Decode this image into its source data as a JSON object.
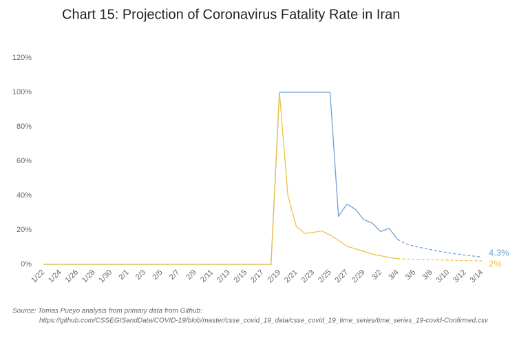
{
  "chart_data": {
    "type": "line",
    "title": "Chart 15: Projection of Coronavirus Fatality Rate in Iran",
    "source": [
      "Source: Tomas Pueyo analysis from primary data from Github:",
      "https://github.com/CSSEGISandData/COVID-19/blob/master/csse_covid_19_data/csse_covid_19_time_series/time_series_19-covid-Confirmed.csv"
    ],
    "categories": [
      "1/22",
      null,
      "1/24",
      null,
      "1/26",
      null,
      "1/28",
      null,
      "1/30",
      null,
      "2/1",
      null,
      "2/3",
      null,
      "2/5",
      null,
      "2/7",
      null,
      "2/9",
      null,
      "2/11",
      null,
      "2/13",
      null,
      "2/15",
      null,
      "2/17",
      null,
      "2/19",
      null,
      "2/21",
      null,
      "2/23",
      null,
      "2/25",
      null,
      "2/27",
      null,
      "2/29",
      null,
      "3/2",
      null,
      "3/4",
      null,
      "3/6",
      null,
      "3/8",
      null,
      "3/10",
      null,
      "3/12",
      null,
      "3/14"
    ],
    "series": [
      {
        "color": "#6f9fd8",
        "dashed": false,
        "values": [
          0,
          0,
          0,
          0,
          0,
          0,
          0,
          0,
          0,
          0,
          0,
          0,
          0,
          0,
          0,
          0,
          0,
          0,
          0,
          0,
          0,
          0,
          0,
          0,
          0,
          0,
          0,
          0,
          100,
          100,
          100,
          100,
          100,
          100,
          100,
          28,
          35,
          32,
          26,
          24,
          19,
          21,
          14.5,
          null,
          null,
          null,
          null,
          null,
          null,
          null,
          null,
          null,
          null
        ]
      },
      {
        "color": "#6f9fd8",
        "dashed": true,
        "values": [
          null,
          null,
          null,
          null,
          null,
          null,
          null,
          null,
          null,
          null,
          null,
          null,
          null,
          null,
          null,
          null,
          null,
          null,
          null,
          null,
          null,
          null,
          null,
          null,
          null,
          null,
          null,
          null,
          null,
          null,
          null,
          null,
          null,
          null,
          null,
          null,
          null,
          null,
          null,
          null,
          null,
          null,
          14.5,
          12,
          10.5,
          9.5,
          8.5,
          7.5,
          6.8,
          6,
          5.4,
          4.8,
          4.3
        ],
        "value_labels": [
          null,
          null,
          null,
          null,
          null,
          null,
          null,
          null,
          null,
          null,
          null,
          null,
          null,
          null,
          null,
          null,
          null,
          null,
          null,
          null,
          null,
          null,
          null,
          null,
          null,
          null,
          null,
          null,
          null,
          null,
          null,
          null,
          null,
          null,
          null,
          null,
          null,
          null,
          null,
          null,
          null,
          null,
          null,
          null,
          null,
          null,
          null,
          null,
          null,
          null,
          null,
          null,
          "4.3%"
        ]
      },
      {
        "color": "#f0c040",
        "dashed": false,
        "values": [
          0,
          0,
          0,
          0,
          0,
          0,
          0,
          0,
          0,
          0,
          0,
          0,
          0,
          0,
          0,
          0,
          0,
          0,
          0,
          0,
          0,
          0,
          0,
          0,
          0,
          0,
          0,
          0,
          100,
          40,
          22,
          18,
          18.5,
          19.5,
          17,
          14,
          10.5,
          9,
          7.5,
          6,
          5,
          4,
          3.3,
          null,
          null,
          null,
          null,
          null,
          null,
          null,
          null,
          null,
          null
        ]
      },
      {
        "color": "#f0c040",
        "dashed": true,
        "values": [
          null,
          null,
          null,
          null,
          null,
          null,
          null,
          null,
          null,
          null,
          null,
          null,
          null,
          null,
          null,
          null,
          null,
          null,
          null,
          null,
          null,
          null,
          null,
          null,
          null,
          null,
          null,
          null,
          null,
          null,
          null,
          null,
          null,
          null,
          null,
          null,
          null,
          null,
          null,
          null,
          null,
          null,
          3.3,
          3.1,
          2.9,
          2.8,
          2.7,
          2.5,
          2.4,
          2.3,
          2.2,
          2.1,
          2
        ],
        "value_labels": [
          null,
          null,
          null,
          null,
          null,
          null,
          null,
          null,
          null,
          null,
          null,
          null,
          null,
          null,
          null,
          null,
          null,
          null,
          null,
          null,
          null,
          null,
          null,
          null,
          null,
          null,
          null,
          null,
          null,
          null,
          null,
          null,
          null,
          null,
          null,
          null,
          null,
          null,
          null,
          null,
          null,
          null,
          null,
          null,
          null,
          null,
          null,
          null,
          null,
          null,
          null,
          null,
          "2%"
        ]
      }
    ],
    "ylim": [
      0,
      120
    ],
    "yticks": [
      {
        "value": 0,
        "label": "0%"
      },
      {
        "value": 20,
        "label": "20%"
      },
      {
        "value": 40,
        "label": "40%"
      },
      {
        "value": 60,
        "label": "60%"
      },
      {
        "value": 80,
        "label": "80%"
      },
      {
        "value": 100,
        "label": "100%"
      },
      {
        "value": 120,
        "label": "120%"
      }
    ]
  }
}
